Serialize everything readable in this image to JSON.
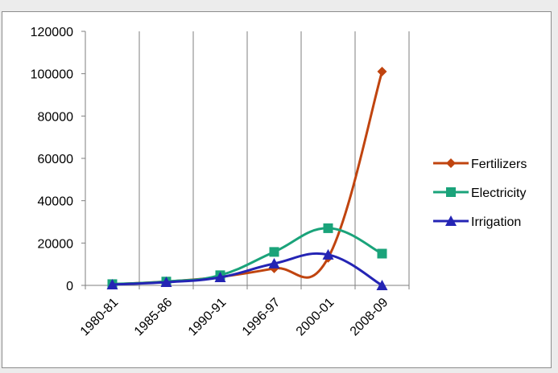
{
  "chart_data": {
    "type": "line",
    "title": "",
    "xlabel": "",
    "ylabel": "",
    "categories": [
      "1980-81",
      "1985-86",
      "1990-91",
      "1996-97",
      "2000-01",
      "2008-09"
    ],
    "ylim": [
      0,
      120000
    ],
    "yticks": [
      0,
      20000,
      40000,
      60000,
      80000,
      100000,
      120000
    ],
    "grid": "vertical",
    "legend_position": "right",
    "series": [
      {
        "name": "Fertilizers",
        "color": "#c0440f",
        "marker": "diamond",
        "values": [
          500,
          1800,
          4000,
          8000,
          13000,
          101000
        ]
      },
      {
        "name": "Electricity",
        "color": "#1aa37a",
        "marker": "square",
        "values": [
          600,
          1800,
          4800,
          15800,
          27000,
          15000
        ]
      },
      {
        "name": "Irrigation",
        "color": "#2424b4",
        "marker": "triangle",
        "values": [
          400,
          1500,
          3800,
          10300,
          14500,
          0
        ]
      }
    ]
  }
}
